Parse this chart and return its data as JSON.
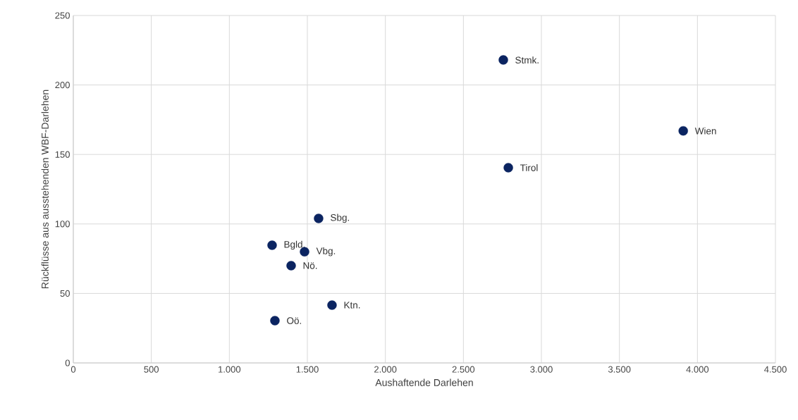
{
  "chart_data": {
    "type": "scatter",
    "xlabel": "Aushaftende Darlehen",
    "ylabel": "Rückflüsse aus ausstehenden WBF-Darlehen",
    "x": [
      2756,
      3909,
      2788,
      1572,
      1274,
      1482,
      1396,
      1658,
      1292
    ],
    "values": [
      218,
      167,
      140.5,
      104,
      84.7,
      80,
      70,
      41.6,
      30.4
    ],
    "color": "#0b2461",
    "marker": "circle",
    "grid": true,
    "xlim": [
      0,
      4500
    ],
    "ylim": [
      0,
      250
    ],
    "xticks": [
      0,
      500,
      {
        "value": 1000,
        "label": "1.000"
      },
      {
        "value": 1500,
        "label": "1.500"
      },
      {
        "value": 2000,
        "label": "2.000"
      },
      {
        "value": 2500,
        "label": "2.500"
      },
      {
        "value": 3000,
        "label": "3.000"
      },
      {
        "value": 3500,
        "label": "3.500"
      },
      {
        "value": 4000,
        "label": "4.000"
      },
      {
        "value": 4500,
        "label": "4.500"
      }
    ],
    "yticks": [
      0,
      50,
      100,
      150,
      200,
      250
    ],
    "annotations": [
      {
        "text": "Stmk.",
        "x": 2756,
        "y": 218
      },
      {
        "text": "Wien",
        "x": 3909,
        "y": 167
      },
      {
        "text": "Tirol",
        "x": 2788,
        "y": 140.5
      },
      {
        "text": "Sbg.",
        "x": 1572,
        "y": 104
      },
      {
        "text": "Bgld.",
        "x": 1274,
        "y": 84.7
      },
      {
        "text": "Vbg.",
        "x": 1482,
        "y": 80
      },
      {
        "text": "Nö.",
        "x": 1396,
        "y": 70
      },
      {
        "text": "Ktn.",
        "x": 1658,
        "y": 41.6
      },
      {
        "text": "Oö.",
        "x": 1292,
        "y": 30.4
      }
    ]
  }
}
